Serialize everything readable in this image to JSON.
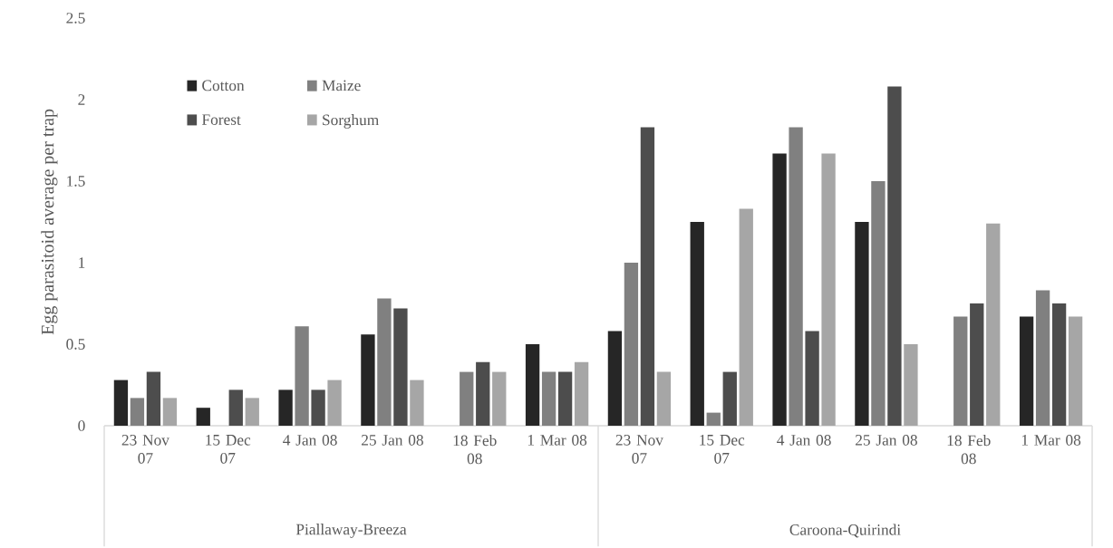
{
  "chart_data": {
    "type": "bar",
    "ylabel": "Egg parasitoid average per trap",
    "categories": [
      "23 Nov 07",
      "15 Dec 07",
      "4 Jan 08",
      "25 Jan 08",
      "18 Feb 08",
      "1 Mar 08",
      "23 Nov 07",
      "15 Dec 07",
      "4 Jan 08",
      "25 Jan 08",
      "18 Feb 08",
      "1 Mar 08"
    ],
    "series": [
      {
        "name": "Cotton",
        "color": "#262626",
        "values": [
          0.28,
          0.11,
          0.22,
          0.56,
          null,
          0.5,
          0.58,
          1.25,
          1.67,
          1.25,
          null,
          0.67
        ]
      },
      {
        "name": "Maize",
        "color": "#808080",
        "values": [
          0.17,
          null,
          0.61,
          0.78,
          0.33,
          0.33,
          1.0,
          0.08,
          1.83,
          1.5,
          0.67,
          0.83
        ]
      },
      {
        "name": "Forest",
        "color": "#4d4d4d",
        "values": [
          0.33,
          0.22,
          0.22,
          0.72,
          0.39,
          0.33,
          1.83,
          0.33,
          0.58,
          2.08,
          0.75,
          0.75
        ]
      },
      {
        "name": "Sorghum",
        "color": "#a6a6a6",
        "values": [
          0.17,
          0.17,
          0.28,
          0.28,
          0.33,
          0.39,
          0.33,
          1.33,
          1.67,
          0.5,
          1.24,
          0.67
        ]
      }
    ],
    "annotations": [
      "Piallaway-Breeza",
      "Caroona-Quirindi"
    ],
    "ylim": [
      0,
      2.5
    ],
    "yticks": [
      0,
      0.5,
      1,
      1.5,
      2,
      2.5
    ],
    "grid": false,
    "legend": "top left"
  }
}
